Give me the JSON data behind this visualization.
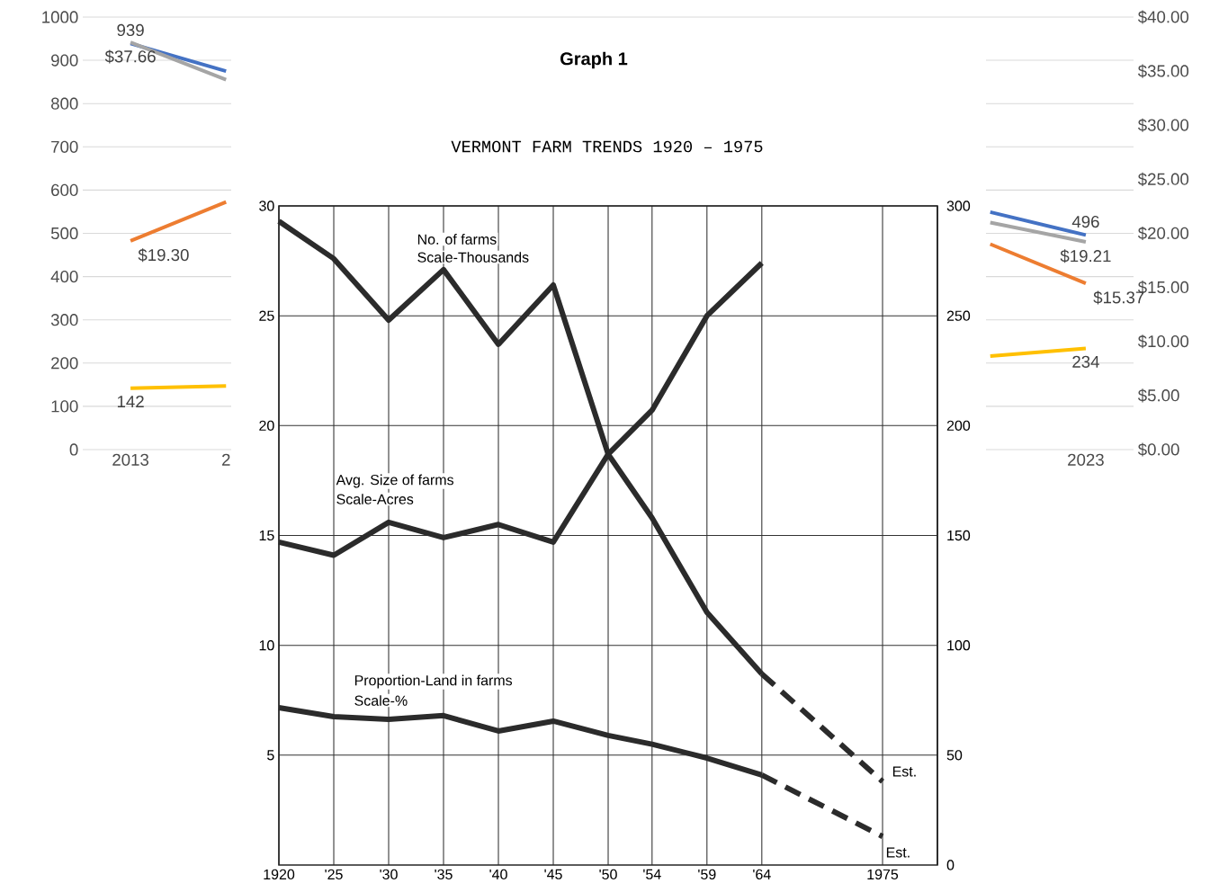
{
  "chart_data": [
    {
      "type": "line",
      "categories": [
        "2013",
        "2",
        null,
        null,
        null,
        null,
        null,
        null,
        null,
        null,
        "2023"
      ],
      "ylim": [
        0,
        1000
      ],
      "yticks": [
        0,
        100,
        200,
        300,
        400,
        500,
        600,
        700,
        800,
        900,
        1000
      ],
      "y2lim": [
        0,
        40
      ],
      "y2ticks": [
        {
          "value": 0,
          "label": "$0.00"
        },
        {
          "value": 5,
          "label": "$5.00"
        },
        {
          "value": 10,
          "label": "$10.00"
        },
        {
          "value": 15,
          "label": "$15.00"
        },
        {
          "value": 20,
          "label": "$20.00"
        },
        {
          "value": 25,
          "label": "$25.00"
        },
        {
          "value": 30,
          "label": "$30.00"
        },
        {
          "value": 35,
          "label": "$35.00"
        },
        {
          "value": 40,
          "label": "$40.00"
        }
      ],
      "grid": "y",
      "series": [
        {
          "color": "#4472c4",
          "values": [
            939,
            875,
            null,
            null,
            null,
            null,
            null,
            null,
            null,
            549,
            496
          ],
          "value_labels": [
            "939",
            null,
            null,
            null,
            null,
            null,
            null,
            null,
            null,
            null,
            "496"
          ]
        },
        {
          "color": "#a5a5a5",
          "axis": "y2",
          "values": [
            37.66,
            34.2,
            null,
            null,
            null,
            null,
            null,
            null,
            null,
            21,
            19.21
          ],
          "value_labels": [
            "$37.66",
            null,
            null,
            null,
            null,
            null,
            null,
            null,
            null,
            null,
            "$19.21"
          ]
        },
        {
          "color": "#ed7d31",
          "axis": "y2",
          "values": [
            19.3,
            22.9,
            null,
            null,
            null,
            null,
            null,
            null,
            null,
            19.0,
            15.37
          ],
          "value_labels": [
            "$19.30",
            null,
            null,
            null,
            null,
            null,
            null,
            null,
            null,
            null,
            "$15.37"
          ]
        },
        {
          "color": "#ffc000",
          "values": [
            142,
            147,
            null,
            null,
            null,
            null,
            null,
            null,
            null,
            216,
            234
          ],
          "value_labels": [
            "142",
            null,
            null,
            null,
            null,
            null,
            null,
            null,
            null,
            null,
            "234"
          ]
        }
      ]
    },
    {
      "type": "line",
      "title": "Graph 1",
      "subtitle": "VERMONT  FARM  TRENDS      1920 – 1975",
      "xlim": [
        1920,
        1980
      ],
      "xticks": [
        {
          "value": 1920,
          "label": "1920"
        },
        {
          "value": 1925,
          "label": "'25"
        },
        {
          "value": 1930,
          "label": "'30"
        },
        {
          "value": 1935,
          "label": "'35"
        },
        {
          "value": 1940,
          "label": "'40"
        },
        {
          "value": 1945,
          "label": "'45"
        },
        {
          "value": 1950,
          "label": "'50"
        },
        {
          "value": 1954,
          "label": "'54"
        },
        {
          "value": 1959,
          "label": "'59"
        },
        {
          "value": 1964,
          "label": "'64"
        },
        {
          "value": 1975,
          "label": "1975"
        }
      ],
      "ylim": [
        0,
        30
      ],
      "yticks": [
        5,
        10,
        15,
        20,
        25,
        30
      ],
      "y2lim": [
        0,
        300
      ],
      "y2ticks": [
        0,
        50,
        100,
        150,
        200,
        250,
        300
      ],
      "grid": true,
      "series": [
        {
          "name": "No. of farms",
          "color": "#2b2b2b",
          "x": [
            1920,
            1925,
            1930,
            1935,
            1940,
            1945,
            1950,
            1954,
            1959,
            1964
          ],
          "values": [
            29.3,
            27.6,
            24.8,
            27.1,
            23.7,
            26.4,
            18.7,
            15.8,
            11.5,
            8.7
          ]
        },
        {
          "color": "#2b2b2b",
          "line_style": "dashed",
          "x": [
            1964,
            1975
          ],
          "values": [
            8.7,
            3.8
          ]
        },
        {
          "name": "Avg. Size of farms",
          "color": "#2b2b2b",
          "axis": "y2",
          "x": [
            1920,
            1925,
            1930,
            1935,
            1940,
            1945,
            1950,
            1954,
            1959,
            1964
          ],
          "values": [
            147,
            141,
            156,
            149,
            155,
            147,
            187,
            207,
            250,
            274
          ]
        },
        {
          "name": "Proportion-Land in farms",
          "color": "#2b2b2b",
          "axis": "y2",
          "x": [
            1920,
            1925,
            1930,
            1935,
            1940,
            1945,
            1950,
            1954,
            1959,
            1964
          ],
          "values": [
            71.6,
            67.5,
            66.3,
            68,
            61,
            65.5,
            59,
            55,
            48.7,
            41
          ]
        },
        {
          "color": "#2b2b2b",
          "axis": "y2",
          "line_style": "dashed",
          "x": [
            1964,
            1975
          ],
          "values": [
            41,
            13
          ]
        }
      ],
      "annotations": [
        "Scale-Thousands",
        "Scale-Acres",
        "Scale-%",
        "Est.",
        "Est."
      ]
    }
  ]
}
